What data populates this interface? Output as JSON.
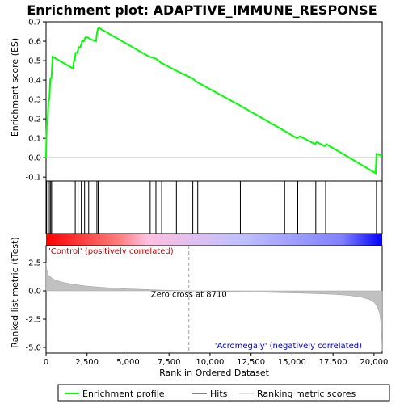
{
  "chart_data": {
    "type": "line",
    "title": "Enrichment plot: ADAPTIVE_IMMUNE_RESPONSE",
    "xlabel": "Rank in Ordered Dataset",
    "xlim": [
      0,
      20500
    ],
    "x_ticks": [
      0,
      2500,
      5000,
      7500,
      10000,
      12500,
      15000,
      17500,
      20000
    ],
    "x_tick_labels": [
      "0",
      "2,500",
      "5,000",
      "7,500",
      "10,000",
      "12,500",
      "15,000",
      "17,500",
      "20,000"
    ],
    "es_panel": {
      "ylabel": "Enrichment score (ES)",
      "ylim": [
        -0.12,
        0.7
      ],
      "y_ticks": [
        -0.1,
        0.0,
        0.1,
        0.2,
        0.3,
        0.4,
        0.5,
        0.6,
        0.7
      ],
      "y_tick_labels": [
        "-0.1",
        "0.0",
        "0.1",
        "0.2",
        "0.3",
        "0.4",
        "0.5",
        "0.6",
        "0.7"
      ],
      "series": [
        {
          "name": "Enrichment profile",
          "color": "#00ff00",
          "x": [
            0,
            20,
            50,
            100,
            150,
            200,
            260,
            330,
            400,
            1650,
            1700,
            1750,
            1800,
            1900,
            2000,
            2100,
            2200,
            2300,
            2400,
            2550,
            2700,
            3050,
            3100,
            3150,
            3200,
            6300,
            6700,
            7000,
            7900,
            8900,
            9200,
            11800,
            14500,
            14700,
            15300,
            15500,
            16400,
            16500,
            17000,
            17100,
            20100,
            20150,
            20500
          ],
          "y": [
            0.0,
            0.09,
            0.18,
            0.18,
            0.3,
            0.3,
            0.41,
            0.41,
            0.52,
            0.46,
            0.5,
            0.5,
            0.54,
            0.54,
            0.57,
            0.57,
            0.6,
            0.6,
            0.62,
            0.62,
            0.61,
            0.6,
            0.64,
            0.66,
            0.67,
            0.52,
            0.51,
            0.49,
            0.45,
            0.41,
            0.39,
            0.27,
            0.14,
            0.13,
            0.1,
            0.11,
            0.07,
            0.08,
            0.06,
            0.07,
            -0.08,
            0.02,
            0.01
          ]
        }
      ],
      "baseline": 0.0
    },
    "hits": {
      "name": "Hits",
      "x": [
        30,
        120,
        200,
        280,
        340,
        1700,
        1780,
        1950,
        2150,
        2350,
        2600,
        3100,
        3180,
        6350,
        6700,
        7050,
        7950,
        8950,
        9250,
        11850,
        14550,
        15350,
        16450,
        17050,
        20150
      ]
    },
    "colorbar": {
      "stops": [
        "#ff0000",
        "#ff8080",
        "#ffc0e0",
        "#c0c0ff",
        "#8080ff",
        "#0000ff"
      ]
    },
    "metric_panel": {
      "name": "Ranking metric scores",
      "ylabel": "Ranked list metric (tTest)",
      "ylim": [
        -5.5,
        4.0
      ],
      "y_ticks": [
        -5.0,
        -2.5,
        0.0,
        2.5
      ],
      "y_tick_labels": [
        "-5.0",
        "-2.5",
        "0.0",
        "2.5"
      ],
      "zero_cross": 8710,
      "zero_cross_label": "Zero cross at 8710",
      "pos_label": "'Control' (positively correlated)",
      "neg_label": "'Acromegaly' (negatively correlated)",
      "x": [
        0,
        50,
        150,
        300,
        500,
        800,
        1200,
        1800,
        2500,
        3500,
        5000,
        7000,
        8710,
        11000,
        14000,
        16000,
        17500,
        18500,
        19200,
        19700,
        20000,
        20200,
        20350,
        20430,
        20480,
        20500
      ],
      "y": [
        2.5,
        1.8,
        1.4,
        1.2,
        1.0,
        0.85,
        0.7,
        0.55,
        0.42,
        0.3,
        0.18,
        0.07,
        0.0,
        -0.06,
        -0.15,
        -0.22,
        -0.3,
        -0.4,
        -0.55,
        -0.75,
        -1.0,
        -1.4,
        -2.0,
        -3.0,
        -4.5,
        -5.3
      ]
    },
    "legend": [
      {
        "name": "Enrichment profile",
        "color": "#00ff00"
      },
      {
        "name": "Hits",
        "color": "#000000"
      },
      {
        "name": "Ranking metric scores",
        "color": "#c0c0c0"
      }
    ]
  }
}
